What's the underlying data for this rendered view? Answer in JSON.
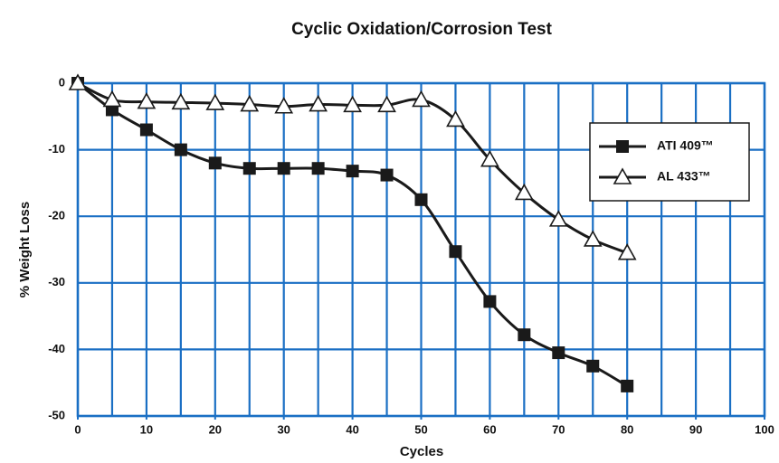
{
  "chart_data": {
    "type": "line",
    "title": "Cyclic Oxidation/Corrosion Test",
    "x_label": "Cycles",
    "y_label": "% Weight Loss",
    "xlim": [
      0,
      100
    ],
    "ylim": [
      -50,
      0
    ],
    "xticks": [
      0,
      10,
      20,
      30,
      40,
      50,
      60,
      70,
      80,
      90,
      100
    ],
    "yticks": [
      0,
      -10,
      -20,
      -30,
      -40,
      -50
    ],
    "x_grid_step": 5,
    "grid": true,
    "grid_color": "#1a6fc4",
    "legend": "upper right",
    "x": [
      0,
      5,
      10,
      15,
      20,
      25,
      30,
      35,
      40,
      45,
      50,
      55,
      60,
      65,
      70,
      75,
      80
    ],
    "series": [
      {
        "name": "ATI 409™",
        "color": "#1a1a1a",
        "marker": "square",
        "values": [
          0,
          -4,
          -7,
          -10,
          -12,
          -12.8,
          -12.8,
          -12.8,
          -13.2,
          -13.8,
          -17.5,
          -25.3,
          -32.8,
          -37.8,
          -40.5,
          -42.5,
          -45.5
        ]
      },
      {
        "name": "AL 433™",
        "color": "#1a1a1a",
        "marker": "triangle",
        "values": [
          0,
          -2.5,
          -2.8,
          -2.9,
          -3,
          -3.2,
          -3.5,
          -3.2,
          -3.3,
          -3.3,
          -2.5,
          -5.5,
          -11.5,
          -16.5,
          -20.5,
          -23.5,
          -25.5
        ]
      }
    ]
  }
}
